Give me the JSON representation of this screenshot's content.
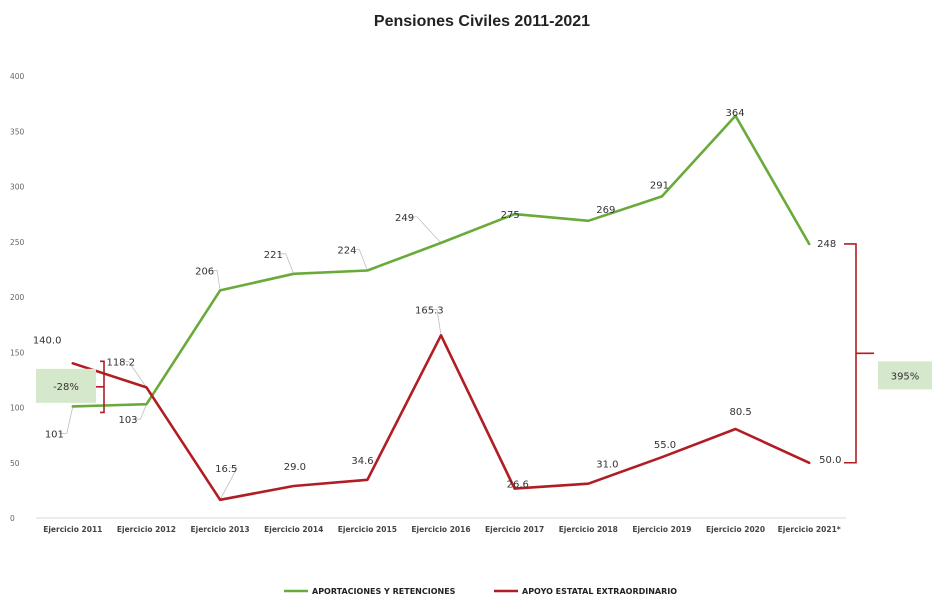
{
  "chart_data": {
    "type": "line",
    "title": "Pensiones Civiles 2011-2021",
    "xlabel": "",
    "ylabel": "",
    "ylim": [
      0,
      400
    ],
    "yticks": [
      0,
      50,
      100,
      150,
      200,
      250,
      300,
      350,
      400
    ],
    "categories": [
      "Ejercicio 2011",
      "Ejercicio 2012",
      "Ejercicio 2013",
      "Ejercicio 2014",
      "Ejercicio 2015",
      "Ejercicio 2016",
      "Ejercicio 2017",
      "Ejercicio 2018",
      "Ejercicio 2019",
      "Ejercicio 2020",
      "Ejercicio 2021*"
    ],
    "series": [
      {
        "name": "APORTACIONES Y RETENCIONES",
        "color": "#6aaa3a",
        "values": [
          101,
          103,
          206,
          221,
          224,
          249,
          275,
          269,
          291,
          364,
          248
        ],
        "labels": [
          "101",
          "103",
          "206",
          "221",
          "224",
          "249",
          "275",
          "269",
          "291",
          "364",
          "248"
        ]
      },
      {
        "name": "APOYO ESTATAL EXTRAORDINARIO",
        "color": "#b01e23",
        "values": [
          140.0,
          118.2,
          16.5,
          29.0,
          34.6,
          165.3,
          26.6,
          31.0,
          55.0,
          80.5,
          50.0
        ],
        "labels": [
          "140.0",
          "118.2",
          "16.5",
          "29.0",
          "34.6",
          "165.3",
          "26.6",
          "31.0",
          "55.0",
          "80.5",
          "50.0"
        ]
      }
    ],
    "annotations": [
      {
        "text": "-28%",
        "color": "#d5e8cc"
      },
      {
        "text": "395%",
        "color": "#d5e8cc"
      }
    ],
    "legend": "bottom",
    "grid": false
  }
}
